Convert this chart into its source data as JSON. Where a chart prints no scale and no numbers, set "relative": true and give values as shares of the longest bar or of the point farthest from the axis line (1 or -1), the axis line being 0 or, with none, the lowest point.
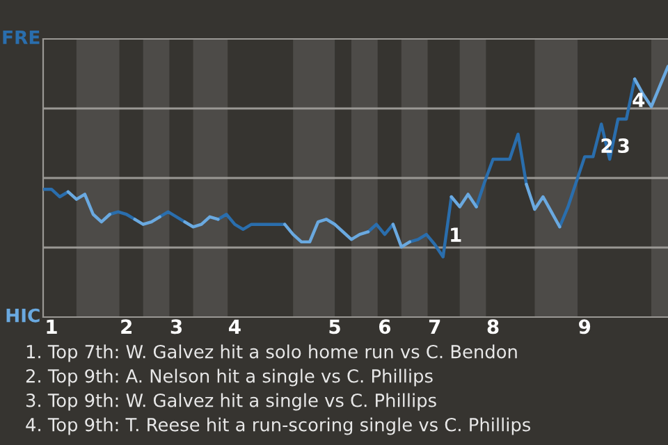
{
  "chart_data": {
    "type": "line",
    "relative": true,
    "categories": [
      null,
      "1",
      null,
      null,
      null,
      null,
      null,
      null,
      null,
      null,
      "2",
      null,
      null,
      null,
      null,
      null,
      "3",
      null,
      null,
      null,
      null,
      null,
      null,
      "4",
      null,
      null,
      null,
      null,
      null,
      null,
      null,
      null,
      null,
      null,
      null,
      "5",
      null,
      null,
      null,
      null,
      null,
      "6",
      null,
      null,
      null,
      null,
      null,
      "7",
      null,
      null,
      null,
      null,
      null,
      null,
      "8",
      null,
      null,
      null,
      null,
      null,
      null,
      null,
      null,
      null,
      null,
      "9",
      null,
      null,
      null,
      null,
      null,
      null,
      null,
      null,
      null,
      null
    ],
    "grid": "y",
    "series": [
      {
        "name": "FRE",
        "color": "#2a6ead",
        "values": [
          0.51,
          0.51,
          0.48,
          0.5,
          null,
          null,
          null,
          null,
          0.41,
          0.42,
          0.41,
          0.39,
          null,
          null,
          0.4,
          0.42,
          0.4,
          0.38,
          null,
          null,
          null,
          0.39,
          0.41,
          0.37,
          0.35,
          0.37,
          0.37,
          0.37,
          0.37,
          0.37,
          null,
          null,
          null,
          null,
          0.39,
          0.37,
          null,
          null,
          null,
          0.34,
          0.37,
          0.33,
          0.37,
          null,
          0.3,
          0.31,
          0.33,
          0.29,
          0.24,
          0.48,
          null,
          null,
          0.44,
          0.54,
          0.63,
          0.63,
          0.63,
          0.73,
          0.53,
          null,
          null,
          null,
          0.36,
          0.44,
          0.54,
          0.64,
          0.64,
          0.77,
          0.63,
          0.79,
          0.79,
          0.95,
          null,
          null,
          null,
          null
        ]
      },
      {
        "name": "HIC",
        "color": "#6aa9e0",
        "values": [
          null,
          null,
          null,
          0.5,
          0.47,
          0.49,
          0.41,
          0.38,
          0.41,
          null,
          null,
          0.39,
          0.37,
          0.38,
          0.4,
          null,
          null,
          0.38,
          0.36,
          0.37,
          0.4,
          0.39,
          null,
          null,
          null,
          null,
          null,
          null,
          null,
          0.37,
          0.33,
          0.3,
          0.3,
          0.38,
          0.39,
          0.37,
          0.34,
          0.31,
          0.33,
          0.34,
          null,
          null,
          0.37,
          0.28,
          0.3,
          null,
          null,
          null,
          null,
          0.48,
          0.44,
          0.49,
          0.44,
          null,
          null,
          null,
          null,
          null,
          0.53,
          0.43,
          0.48,
          0.42,
          0.36,
          null,
          null,
          null,
          null,
          null,
          null,
          null,
          null,
          0.95,
          0.89,
          0.84,
          0.92,
          1
        ]
      }
    ],
    "annotations": [
      "1",
      "2",
      "3",
      "4",
      "1. Top 7th: W. Galvez hit a solo home run vs C. Bendon",
      "2. Top 9th: A. Nelson hit a single vs C. Phillips",
      "3. Top 9th: W. Galvez hit a single vs C. Phillips",
      "4. Top 9th: T. Reese hit a run-scoring single vs C. Phillips"
    ]
  }
}
